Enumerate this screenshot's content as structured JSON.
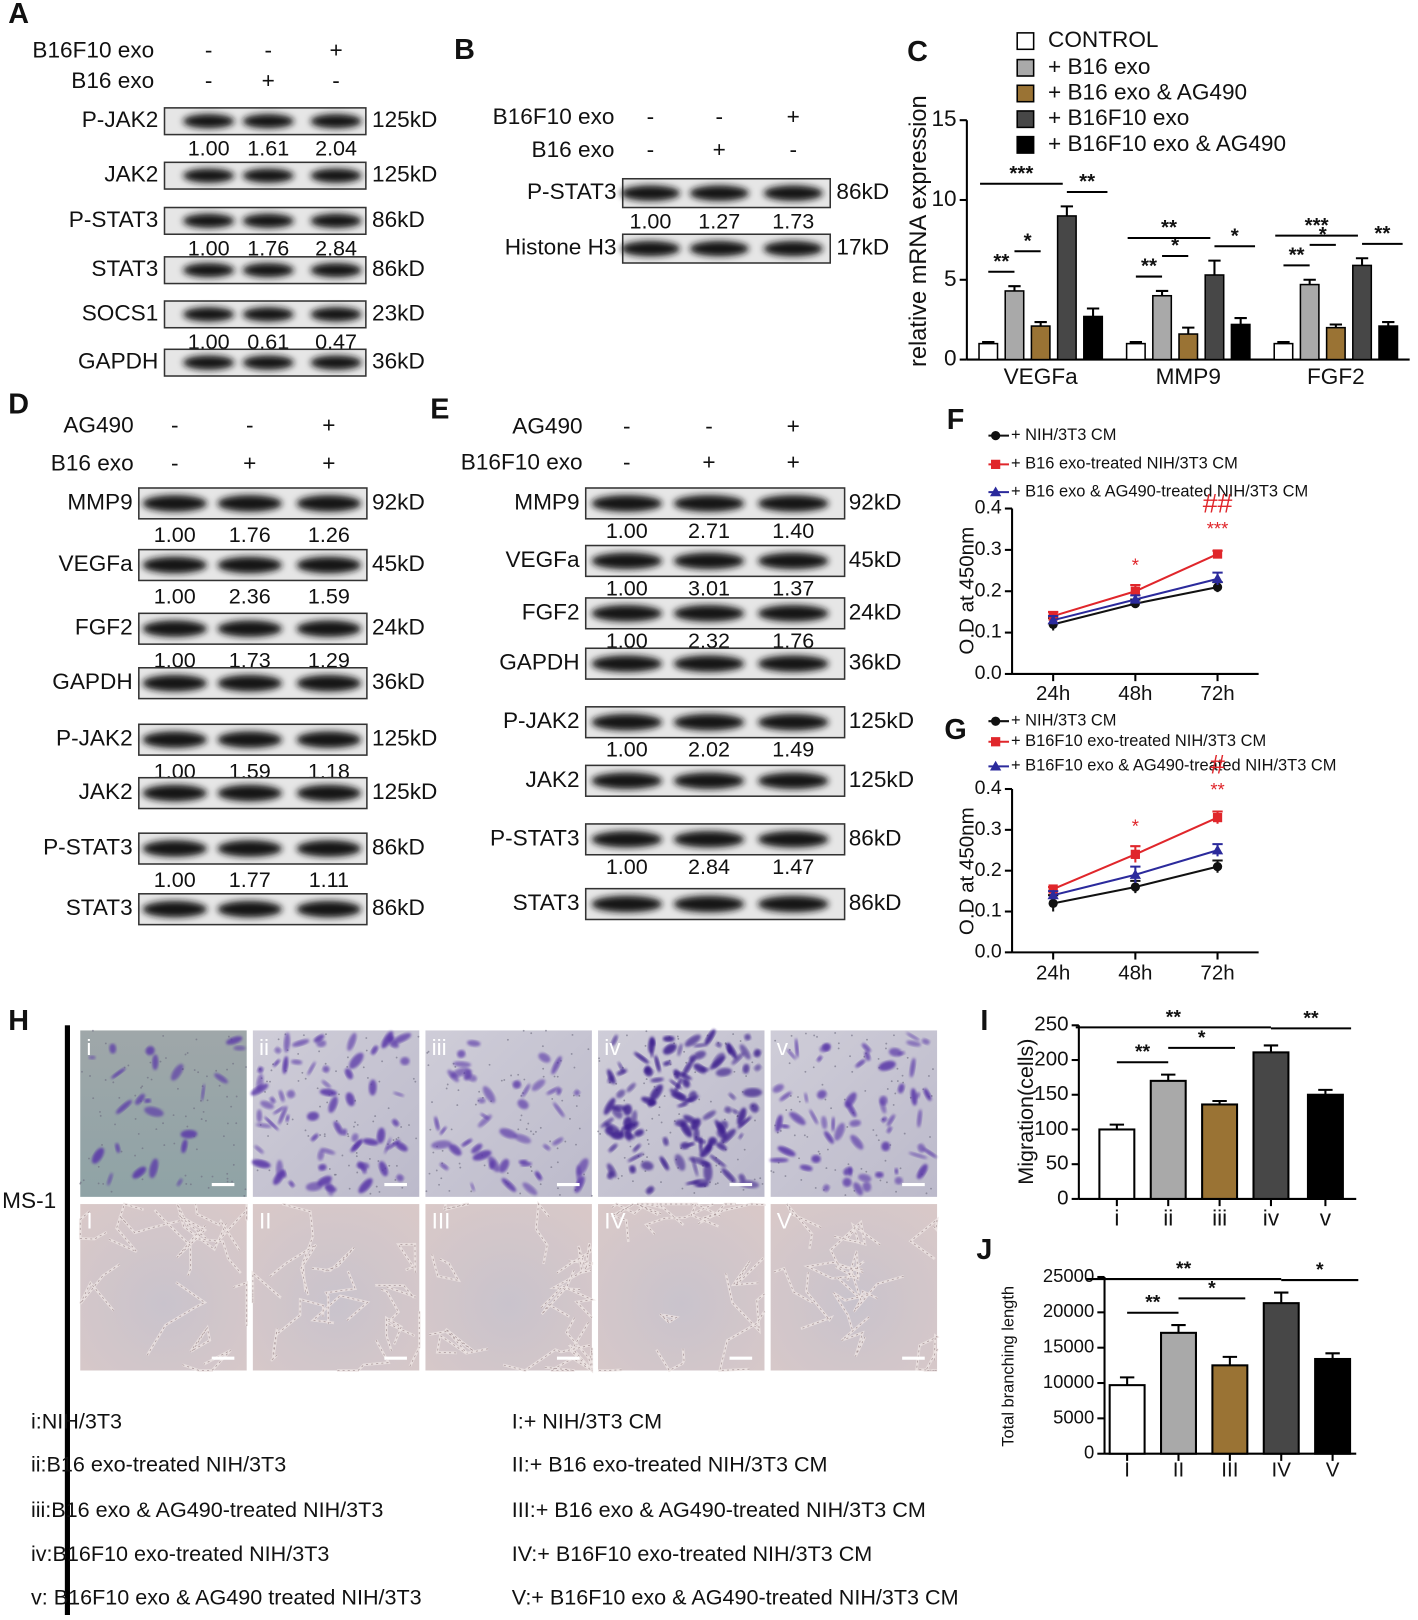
{
  "blots": [
    {
      "label": "A",
      "conditions": [
        {
          "name": "B16F10 exo",
          "signs": [
            "-",
            "-",
            "+"
          ]
        },
        {
          "name": "B16 exo",
          "signs": [
            "-",
            "+",
            "-"
          ]
        }
      ],
      "rows": [
        {
          "protein": "P-JAK2",
          "size": "125kD",
          "quant": [
            "1.00",
            "1.61",
            "2.04"
          ]
        },
        {
          "protein": "JAK2",
          "size": "125kD"
        },
        {
          "protein": "P-STAT3",
          "size": "86kD",
          "quant": [
            "1.00",
            "1.76",
            "2.84"
          ]
        },
        {
          "protein": "STAT3",
          "size": "86kD"
        },
        {
          "protein": "SOCS1",
          "size": "23kD",
          "quant": [
            "1.00",
            "0.61",
            "0.47"
          ]
        },
        {
          "protein": "GAPDH",
          "size": "36kD"
        }
      ]
    },
    {
      "label": "B",
      "conditions": [
        {
          "name": "B16F10 exo",
          "signs": [
            "-",
            "-",
            "+"
          ]
        },
        {
          "name": "B16 exo",
          "signs": [
            "-",
            "+",
            "-"
          ]
        }
      ],
      "rows": [
        {
          "protein": "P-STAT3",
          "size": "86kD",
          "quant": [
            "1.00",
            "1.27",
            "1.73"
          ]
        },
        {
          "protein": "Histone H3",
          "size": "17kD"
        }
      ]
    },
    {
      "label": "D",
      "conditions": [
        {
          "name": "AG490",
          "signs": [
            "-",
            "-",
            "+"
          ]
        },
        {
          "name": "B16 exo",
          "signs": [
            "-",
            "+",
            "+"
          ]
        }
      ],
      "rows": [
        {
          "protein": "MMP9",
          "size": "92kD",
          "quant": [
            "1.00",
            "1.76",
            "1.26"
          ]
        },
        {
          "protein": "VEGFa",
          "size": "45kD",
          "quant": [
            "1.00",
            "2.36",
            "1.59"
          ]
        },
        {
          "protein": "FGF2",
          "size": "24kD",
          "quant": [
            "1.00",
            "1.73",
            "1.29"
          ]
        },
        {
          "protein": "GAPDH",
          "size": "36kD"
        },
        {
          "protein": "P-JAK2",
          "size": "125kD",
          "quant": [
            "1.00",
            "1.59",
            "1.18"
          ]
        },
        {
          "protein": "JAK2",
          "size": "125kD"
        },
        {
          "protein": "P-STAT3",
          "size": "86kD",
          "quant": [
            "1.00",
            "1.77",
            "1.11"
          ]
        },
        {
          "protein": "STAT3",
          "size": "86kD"
        }
      ]
    },
    {
      "label": "E",
      "conditions": [
        {
          "name": "AG490",
          "signs": [
            "-",
            "-",
            "+"
          ]
        },
        {
          "name": "B16F10 exo",
          "signs": [
            "-",
            "+",
            "+"
          ]
        }
      ],
      "rows": [
        {
          "protein": "MMP9",
          "size": "92kD",
          "quant": [
            "1.00",
            "2.71",
            "1.40"
          ]
        },
        {
          "protein": "VEGFa",
          "size": "45kD",
          "quant": [
            "1.00",
            "3.01",
            "1.37"
          ]
        },
        {
          "protein": "FGF2",
          "size": "24kD",
          "quant": [
            "1.00",
            "2.32",
            "1.76"
          ]
        },
        {
          "protein": "GAPDH",
          "size": "36kD"
        },
        {
          "protein": "P-JAK2",
          "size": "125kD",
          "quant": [
            "1.00",
            "2.02",
            "1.49"
          ]
        },
        {
          "protein": "JAK2",
          "size": "125kD"
        },
        {
          "protein": "P-STAT3",
          "size": "86kD",
          "quant": [
            "1.00",
            "2.84",
            "1.47"
          ]
        },
        {
          "protein": "STAT3",
          "size": "86kD"
        }
      ]
    }
  ],
  "chart_data": [
    {
      "type": "grouped_bar",
      "label": "C",
      "y_label": "relative mRNA expression",
      "categories": [
        "VEGFa",
        "MMP9",
        "FGF2"
      ],
      "series": [
        {
          "name": "CONTROL",
          "color": "#ffffff",
          "values": [
            1,
            1,
            1
          ],
          "errors": [
            0.1,
            0.1,
            0.1
          ]
        },
        {
          "name": "+ B16 exo",
          "color": "#a9a9a9",
          "values": [
            4.3,
            4.0,
            4.7
          ],
          "errors": [
            0.3,
            0.3,
            0.3
          ]
        },
        {
          "name": "+ B16 exo & AG490",
          "color": "#9a7334",
          "values": [
            2.1,
            1.6,
            2.0
          ],
          "errors": [
            0.25,
            0.4,
            0.2
          ]
        },
        {
          "name": "+ B16F10 exo",
          "color": "#474747",
          "values": [
            9.0,
            5.3,
            5.9
          ],
          "errors": [
            0.6,
            0.9,
            0.45
          ]
        },
        {
          "name": "+ B16F10 exo & AG490",
          "color": "#000000",
          "values": [
            2.7,
            2.2,
            2.1
          ],
          "errors": [
            0.5,
            0.4,
            0.25
          ]
        }
      ],
      "annotations": [
        [
          "**",
          "*",
          "***",
          "**"
        ],
        [
          "**",
          "*",
          "**",
          "*"
        ],
        [
          "**",
          "*",
          "***",
          "**"
        ]
      ],
      "ylim": [
        0,
        15
      ],
      "yticks": [
        0,
        5,
        10,
        15
      ]
    },
    {
      "type": "line",
      "label": "F",
      "y_label": "O.D at 450nm",
      "categories": [
        "24h",
        "48h",
        "72h"
      ],
      "series": [
        {
          "name": "+ NIH/3T3 CM",
          "color": "#111111",
          "values": [
            0.12,
            0.17,
            0.21
          ],
          "errors": [
            0.015,
            0.01,
            0.012
          ]
        },
        {
          "name": "+ B16 exo-treated NIH/3T3 CM",
          "color": "#e0262b",
          "values": [
            0.14,
            0.2,
            0.29
          ],
          "errors": [
            0.01,
            0.015,
            0.008
          ]
        },
        {
          "name": "+ B16 exo & AG490-treated NIH/3T3 CM",
          "color": "#2b2a9c",
          "values": [
            0.13,
            0.18,
            0.23
          ],
          "errors": [
            0.01,
            0.01,
            0.015
          ]
        }
      ],
      "annotations": [
        "*",
        "***",
        "##"
      ],
      "ylim": [
        0,
        0.4
      ],
      "yticks": [
        {
          "value": 0,
          "label": "0.0"
        },
        0.1,
        0.2,
        0.3,
        0.4
      ]
    },
    {
      "type": "line",
      "label": "G",
      "y_label": "O.D at 450nm",
      "categories": [
        "24h",
        "48h",
        "72h"
      ],
      "series": [
        {
          "name": "+ NIH/3T3 CM",
          "color": "#111111",
          "values": [
            0.12,
            0.16,
            0.21
          ],
          "errors": [
            0.02,
            0.015,
            0.015
          ]
        },
        {
          "name": "+ B16F10 exo-treated NIH/3T3 CM",
          "color": "#e0262b",
          "values": [
            0.155,
            0.24,
            0.33
          ],
          "errors": [
            0.005,
            0.02,
            0.015
          ]
        },
        {
          "name": "+ B16F10 exo & AG490-treated NIH/3T3 CM",
          "color": "#2b2a9c",
          "values": [
            0.14,
            0.19,
            0.25
          ],
          "errors": [
            0.01,
            0.02,
            0.015
          ]
        }
      ],
      "annotations": [
        "*",
        "**",
        "#"
      ],
      "ylim": [
        0,
        0.4
      ],
      "yticks": [
        {
          "value": 0,
          "label": "0.0"
        },
        0.1,
        0.2,
        0.3,
        0.4
      ]
    },
    {
      "type": "bar",
      "label": "I",
      "y_label": "Migration(cells)",
      "categories": [
        "i",
        "ii",
        "iii",
        "iv",
        "v"
      ],
      "values": [
        100,
        170,
        136,
        211,
        150
      ],
      "errors": [
        7,
        9,
        5,
        10,
        7
      ],
      "colors": [
        "#ffffff",
        "#a9a9a9",
        "#9a7334",
        "#474747",
        "#000000"
      ],
      "annotations": [
        "**",
        "*",
        "**",
        "**"
      ],
      "ylim": [
        0,
        250
      ],
      "yticks": [
        0,
        50,
        100,
        150,
        200,
        250
      ]
    },
    {
      "type": "bar",
      "label": "J",
      "y_label": "Total branching length",
      "categories": [
        "I",
        "II",
        "III",
        "IV",
        "V"
      ],
      "values": [
        9700,
        17100,
        12500,
        21300,
        13400
      ],
      "errors": [
        1100,
        1100,
        1200,
        1500,
        800
      ],
      "colors": [
        "#ffffff",
        "#a9a9a9",
        "#9a7334",
        "#474747",
        "#000000"
      ],
      "annotations": [
        "**",
        "*",
        "**",
        "*"
      ],
      "ylim": [
        0,
        25000
      ],
      "yticks": [
        0,
        5000,
        10000,
        15000,
        20000,
        25000
      ]
    }
  ],
  "panel_h": {
    "label": "H",
    "cell_line": "MS-1",
    "top_labels": [
      "i",
      "ii",
      "iii",
      "iv",
      "v"
    ],
    "bottom_labels": [
      "I",
      "II",
      "III",
      "IV",
      "V"
    ],
    "legend_left": [
      "i:NIH/3T3",
      "ii:B16 exo-treated NIH/3T3",
      "iii:B16 exo & AG490-treated NIH/3T3",
      "iv:B16F10 exo-treated NIH/3T3",
      "v: B16F10 exo & AG490 treated NIH/3T3"
    ],
    "legend_right": [
      "I:+ NIH/3T3 CM",
      "II:+ B16 exo-treated NIH/3T3 CM",
      "III:+ B16 exo & AG490-treated NIH/3T3 CM",
      "IV:+ B16F10 exo-treated NIH/3T3 CM",
      "V:+ B16F10 exo & AG490-treated NIH/3T3 CM"
    ]
  }
}
